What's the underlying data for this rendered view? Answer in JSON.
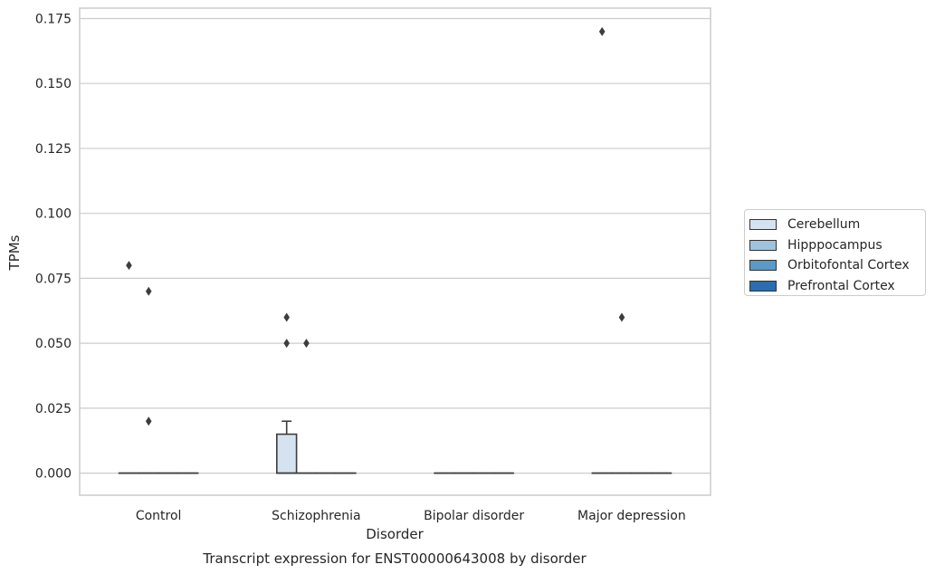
{
  "chart_data": {
    "type": "box",
    "title": "Transcript expression for ENST00000643008 by disorder",
    "xlabel": "Disorder",
    "ylabel": "TPMs",
    "ylim": [
      -0.0085,
      0.179
    ],
    "yticks": [
      "0.000",
      "0.025",
      "0.050",
      "0.075",
      "0.100",
      "0.125",
      "0.150",
      "0.175"
    ],
    "categories": [
      "Control",
      "Schizophrenia",
      "Bipolar disorder",
      "Major depression"
    ],
    "grid": true,
    "legend_position": "right",
    "series": [
      {
        "name": "Cerebellum",
        "color": "#d5e3f1",
        "boxes": [
          {
            "q1": 0,
            "median": 0,
            "q3": 0,
            "whisker_low": 0,
            "whisker_high": 0,
            "outliers": [
              0.08
            ]
          },
          {
            "q1": 0,
            "median": 0,
            "q3": 0.015,
            "whisker_low": 0,
            "whisker_high": 0.02,
            "outliers": [
              0.06,
              0.05
            ]
          },
          {
            "q1": 0,
            "median": 0,
            "q3": 0,
            "whisker_low": 0,
            "whisker_high": 0,
            "outliers": []
          },
          {
            "q1": 0,
            "median": 0,
            "q3": 0,
            "whisker_low": 0,
            "whisker_high": 0,
            "outliers": [
              0.17
            ]
          }
        ]
      },
      {
        "name": "Hipppocampus",
        "color": "#9ec3de",
        "boxes": [
          {
            "q1": 0,
            "median": 0,
            "q3": 0,
            "whisker_low": 0,
            "whisker_high": 0,
            "outliers": [
              0.07,
              0.02
            ]
          },
          {
            "q1": 0,
            "median": 0,
            "q3": 0,
            "whisker_low": 0,
            "whisker_high": 0,
            "outliers": [
              0.05
            ]
          },
          {
            "q1": 0,
            "median": 0,
            "q3": 0,
            "whisker_low": 0,
            "whisker_high": 0,
            "outliers": []
          },
          {
            "q1": 0,
            "median": 0,
            "q3": 0,
            "whisker_low": 0,
            "whisker_high": 0,
            "outliers": [
              0.06
            ]
          }
        ]
      },
      {
        "name": "Orbitofontal Cortex",
        "color": "#5a9ac8",
        "boxes": [
          {
            "q1": 0,
            "median": 0,
            "q3": 0,
            "whisker_low": 0,
            "whisker_high": 0,
            "outliers": []
          },
          {
            "q1": 0,
            "median": 0,
            "q3": 0,
            "whisker_low": 0,
            "whisker_high": 0,
            "outliers": []
          },
          {
            "q1": 0,
            "median": 0,
            "q3": 0,
            "whisker_low": 0,
            "whisker_high": 0,
            "outliers": []
          },
          {
            "q1": 0,
            "median": 0,
            "q3": 0,
            "whisker_low": 0,
            "whisker_high": 0,
            "outliers": []
          }
        ]
      },
      {
        "name": "Prefrontal Cortex",
        "color": "#2a6db0",
        "boxes": [
          {
            "q1": 0,
            "median": 0,
            "q3": 0,
            "whisker_low": 0,
            "whisker_high": 0,
            "outliers": []
          },
          {
            "q1": 0,
            "median": 0,
            "q3": 0,
            "whisker_low": 0,
            "whisker_high": 0,
            "outliers": []
          },
          {
            "q1": 0,
            "median": 0,
            "q3": 0,
            "whisker_low": 0,
            "whisker_high": 0,
            "outliers": []
          },
          {
            "q1": 0,
            "median": 0,
            "q3": 0,
            "whisker_low": 0,
            "whisker_high": 0,
            "outliers": []
          }
        ]
      }
    ]
  }
}
